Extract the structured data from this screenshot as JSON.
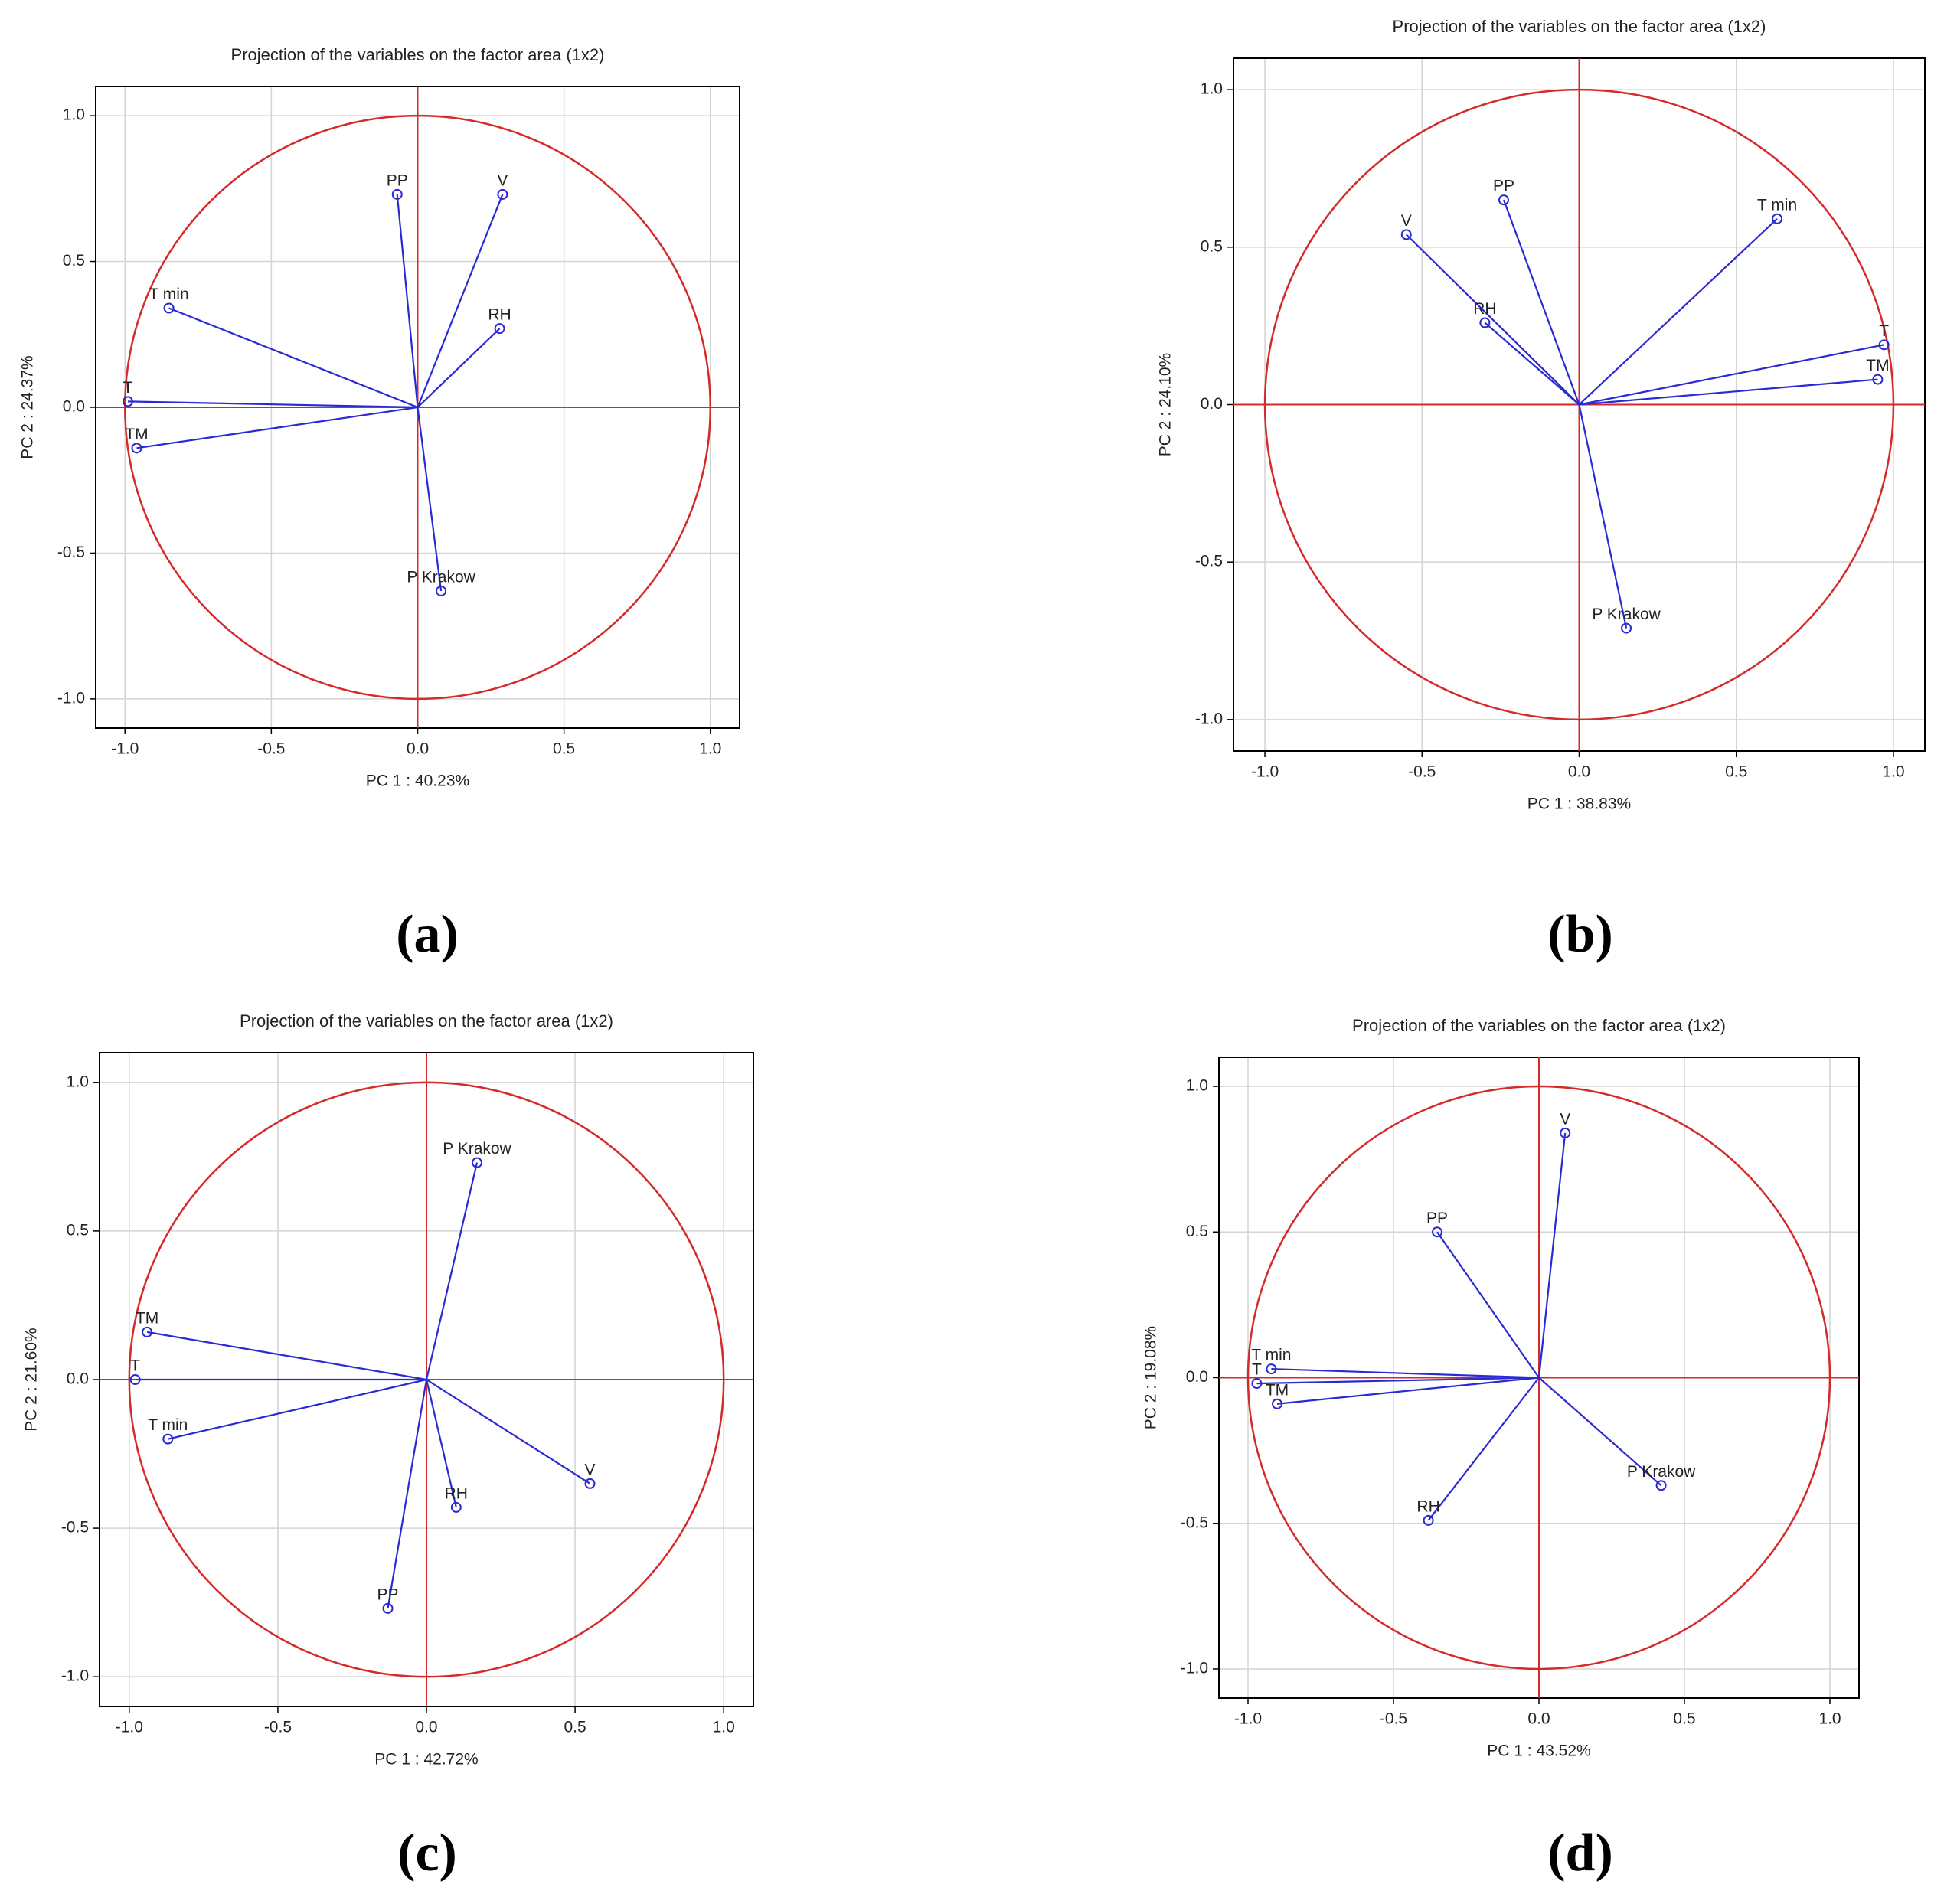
{
  "chart_data": [
    {
      "type": "scatter",
      "title": "Projection of the variables on the factor area (1x2)",
      "xlabel": "PC 1 : 40.23%",
      "ylabel": "PC 2 : 24.37%",
      "caption": "(a)",
      "labels": [
        "T",
        "TM",
        "T min",
        "PP",
        "V",
        "RH",
        "P Krakow"
      ],
      "x": [
        -0.99,
        -0.96,
        -0.85,
        -0.07,
        0.29,
        0.28,
        0.08
      ],
      "y": [
        0.02,
        -0.14,
        0.34,
        0.73,
        0.73,
        0.27,
        -0.63
      ],
      "xlim": [
        -1.1,
        1.1
      ],
      "ylim": [
        -1.1,
        1.1
      ],
      "xticks": [
        {
          "value": -1,
          "label": "-1.0"
        },
        -0.5,
        {
          "value": 0,
          "label": "0.0"
        },
        0.5,
        {
          "value": 1,
          "label": "1.0"
        }
      ],
      "yticks": [
        {
          "value": -1,
          "label": "-1.0"
        },
        -0.5,
        {
          "value": 0,
          "label": "0.0"
        },
        0.5,
        {
          "value": 1,
          "label": "1.0"
        }
      ],
      "grid": true,
      "color": "#2a2ad2",
      "circle_color": "#d42a2a"
    },
    {
      "type": "scatter",
      "title": "Projection of the variables on the factor area (1x2)",
      "xlabel": "PC 1 : 38.83%",
      "ylabel": "PC 2 : 24.10%",
      "caption": "(b)",
      "labels": [
        "V",
        "PP",
        "T min",
        "RH",
        "T",
        "TM",
        "P Krakow"
      ],
      "x": [
        -0.55,
        -0.24,
        0.63,
        -0.3,
        0.97,
        0.95,
        0.15
      ],
      "y": [
        0.54,
        0.65,
        0.59,
        0.26,
        0.19,
        0.08,
        -0.71
      ],
      "xlim": [
        -1.1,
        1.1
      ],
      "ylim": [
        -1.1,
        1.1
      ],
      "xticks": [
        {
          "value": -1,
          "label": "-1.0"
        },
        -0.5,
        {
          "value": 0,
          "label": "0.0"
        },
        0.5,
        {
          "value": 1,
          "label": "1.0"
        }
      ],
      "yticks": [
        {
          "value": -1,
          "label": "-1.0"
        },
        -0.5,
        {
          "value": 0,
          "label": "0.0"
        },
        0.5,
        {
          "value": 1,
          "label": "1.0"
        }
      ],
      "grid": true,
      "color": "#2a2ad2",
      "circle_color": "#d42a2a"
    },
    {
      "type": "scatter",
      "title": "Projection of the variables on the factor area (1x2)",
      "xlabel": "PC 1 : 42.72%",
      "ylabel": "PC 2 : 21.60%",
      "caption": "(c)",
      "labels": [
        "P Krakow",
        "TM",
        "T",
        "T min",
        "V",
        "RH",
        "PP"
      ],
      "x": [
        0.17,
        -0.94,
        -0.98,
        -0.87,
        0.55,
        0.1,
        -0.13
      ],
      "y": [
        0.73,
        0.16,
        0.0,
        -0.2,
        -0.35,
        -0.43,
        -0.77
      ],
      "xlim": [
        -1.1,
        1.1
      ],
      "ylim": [
        -1.1,
        1.1
      ],
      "xticks": [
        {
          "value": -1,
          "label": "-1.0"
        },
        -0.5,
        {
          "value": 0,
          "label": "0.0"
        },
        0.5,
        {
          "value": 1,
          "label": "1.0"
        }
      ],
      "yticks": [
        {
          "value": -1,
          "label": "-1.0"
        },
        -0.5,
        {
          "value": 0,
          "label": "0.0"
        },
        0.5,
        {
          "value": 1,
          "label": "1.0"
        }
      ],
      "grid": true,
      "color": "#2a2ad2",
      "circle_color": "#d42a2a"
    },
    {
      "type": "scatter",
      "title": "Projection of the variables on the factor area (1x2)",
      "xlabel": "PC 1 : 43.52%",
      "ylabel": "PC 2 : 19.08%",
      "caption": "(d)",
      "labels": [
        "V",
        "PP",
        "T min",
        "T",
        "TM",
        "RH",
        "P Krakow"
      ],
      "x": [
        0.09,
        -0.35,
        -0.92,
        -0.97,
        -0.9,
        -0.38,
        0.42
      ],
      "y": [
        0.84,
        0.5,
        0.03,
        -0.02,
        -0.09,
        -0.49,
        -0.37
      ],
      "xlim": [
        -1.1,
        1.1
      ],
      "ylim": [
        -1.1,
        1.1
      ],
      "xticks": [
        {
          "value": -1,
          "label": "-1.0"
        },
        -0.5,
        {
          "value": 0,
          "label": "0.0"
        },
        0.5,
        {
          "value": 1,
          "label": "1.0"
        }
      ],
      "yticks": [
        {
          "value": -1,
          "label": "-1.0"
        },
        -0.5,
        {
          "value": 0,
          "label": "0.0"
        },
        0.5,
        {
          "value": 1,
          "label": "1.0"
        }
      ],
      "grid": true,
      "color": "#2a2ad2",
      "circle_color": "#d42a2a"
    }
  ]
}
